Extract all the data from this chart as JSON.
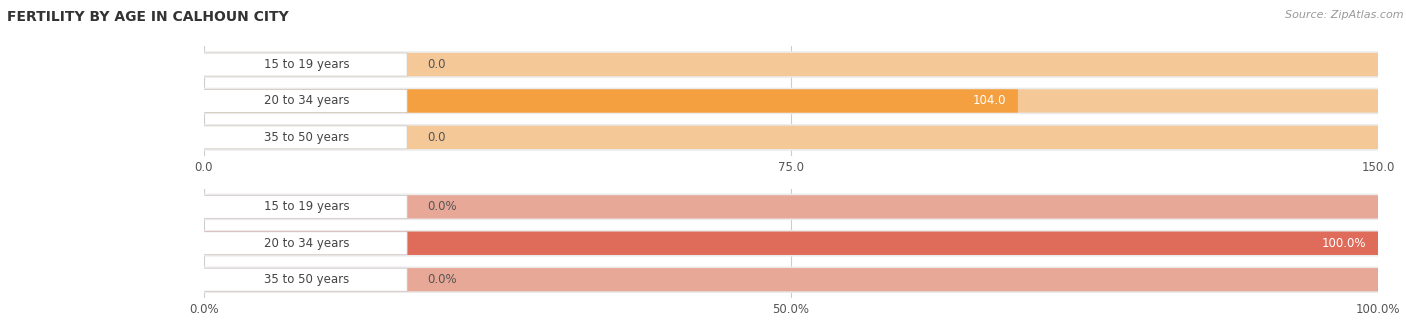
{
  "title": "FERTILITY BY AGE IN CALHOUN CITY",
  "source": "Source: ZipAtlas.com",
  "top_chart": {
    "categories": [
      "15 to 19 years",
      "20 to 34 years",
      "35 to 50 years"
    ],
    "values": [
      0.0,
      104.0,
      0.0
    ],
    "xlim": [
      0,
      150
    ],
    "xticks": [
      0.0,
      75.0,
      150.0
    ],
    "bar_color": "#f5a040",
    "bar_color_light": "#f5c898",
    "row_bg_color": "#ebebeb"
  },
  "bottom_chart": {
    "categories": [
      "15 to 19 years",
      "20 to 34 years",
      "35 to 50 years"
    ],
    "values": [
      0.0,
      100.0,
      0.0
    ],
    "xlim": [
      0,
      100
    ],
    "xticks": [
      0.0,
      50.0,
      100.0
    ],
    "bar_color": "#df6b5a",
    "bar_color_light": "#e8a898",
    "row_bg_color": "#ebebeb"
  },
  "label_color": "#444444",
  "value_color_inside": "#ffffff",
  "value_color_outside": "#555555",
  "label_box_color": "#ffffff",
  "label_box_edge": "#cccccc",
  "fig_bg": "#ffffff",
  "title_color": "#333333",
  "source_color": "#999999",
  "grid_color": "#cccccc"
}
